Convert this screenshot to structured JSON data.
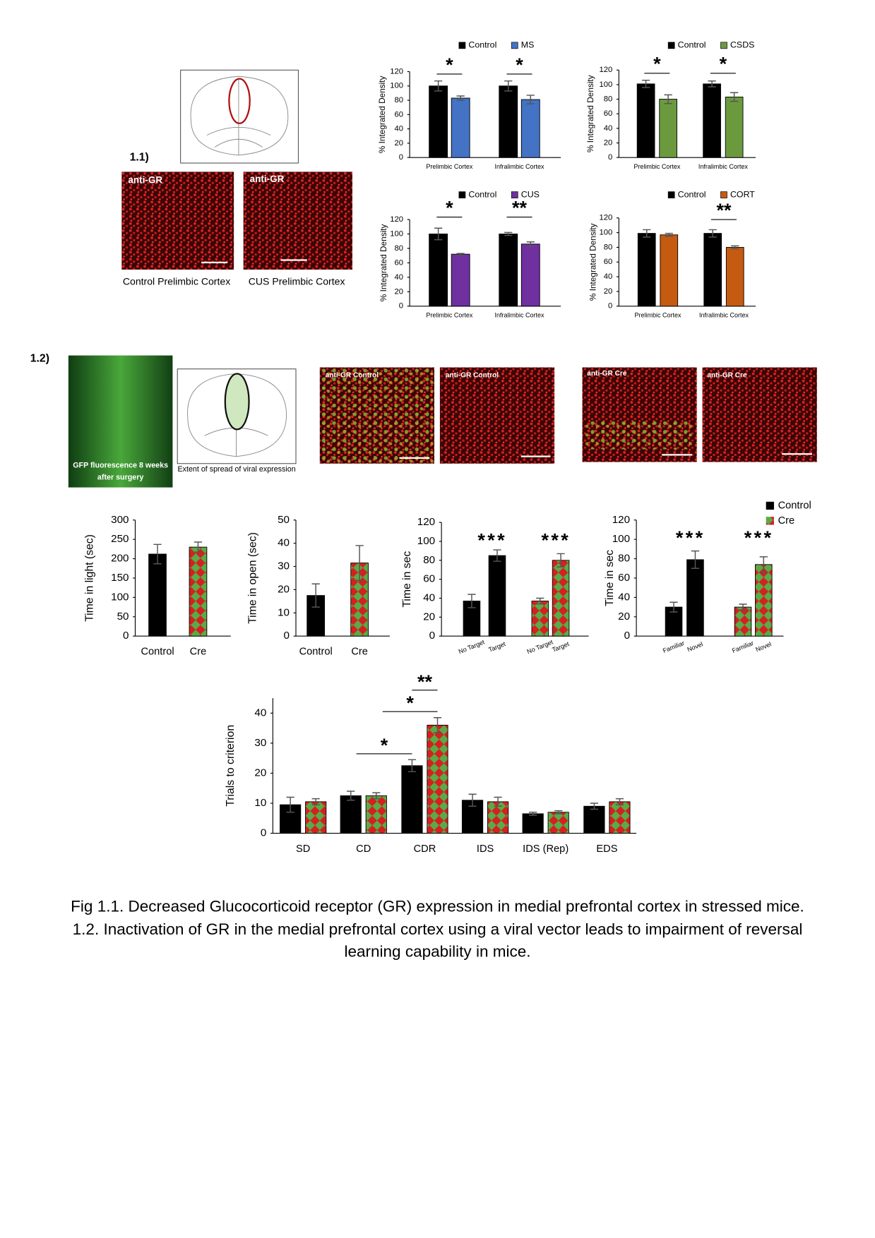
{
  "panel_labels": [
    "1.1)",
    "1.2)"
  ],
  "images": {
    "gr_left_label": "anti-GR",
    "gr_right_label": "anti-GR",
    "gr_left_caption": "Control Prelimbic Cortex",
    "gr_right_caption": "CUS Prelimbic Cortex",
    "gfp_caption": "GFP fluorescence 8 weeks after surgery",
    "spread_caption": "Extent of spread of viral expression",
    "ctrl_merge_label": "anti-GR Control",
    "ctrl_red_label": "anti-GR Control",
    "cre_merge_label": "anti-GR Cre",
    "cre_red_label": "anti-GR Cre"
  },
  "caption": [
    "Fig 1.1. Decreased Glucocorticoid receptor (GR) expression in medial prefrontal cortex in stressed mice.",
    "1.2. Inactivation of GR in the medial prefrontal cortex using a viral vector leads to impairment of reversal",
    "learning capability in mice."
  ],
  "chart_data": [
    {
      "type": "bar",
      "y_label": "% Integrated  Density",
      "categories": [
        "Prelimbic Cortex",
        "Infralimbic Cortex"
      ],
      "series": [
        {
          "name": "Control",
          "color": "#000000",
          "values": [
            100,
            100
          ],
          "errors": [
            7,
            7
          ]
        },
        {
          "name": "MS",
          "color": "#4472c4",
          "values": [
            83,
            81
          ],
          "errors": [
            3,
            6
          ]
        }
      ],
      "significance": [
        "*",
        "*"
      ],
      "ylim": [
        0,
        120
      ],
      "yticks": [
        0,
        20,
        40,
        60,
        80,
        100,
        120
      ]
    },
    {
      "type": "bar",
      "y_label": "% Integrated  Density",
      "categories": [
        "Prelimbic Cortex",
        "Infralimbic Cortex"
      ],
      "series": [
        {
          "name": "Control",
          "color": "#000000",
          "values": [
            101,
            101
          ],
          "errors": [
            5,
            4
          ]
        },
        {
          "name": "CSDS",
          "color": "#6b9a3e",
          "values": [
            80,
            83
          ],
          "errors": [
            6,
            6
          ]
        }
      ],
      "significance": [
        "*",
        "*"
      ],
      "ylim": [
        0,
        120
      ],
      "yticks": [
        0,
        20,
        40,
        60,
        80,
        100,
        120
      ]
    },
    {
      "type": "bar",
      "y_label": "% Integrated  Density",
      "categories": [
        "Prelimbic Cortex",
        "Infralimbic Cortex"
      ],
      "series": [
        {
          "name": "Control",
          "color": "#000000",
          "values": [
            100,
            100
          ],
          "errors": [
            8,
            2
          ]
        },
        {
          "name": "CUS",
          "color": "#7030a0",
          "values": [
            72,
            86
          ],
          "errors": [
            1,
            3
          ]
        }
      ],
      "significance": [
        "*",
        "**"
      ],
      "ylim": [
        0,
        120
      ],
      "yticks": [
        0,
        20,
        40,
        60,
        80,
        100,
        120
      ]
    },
    {
      "type": "bar",
      "y_label": "% Integrated  Density",
      "categories": [
        "Prelimbic Cortex",
        "Infralimbic Cortex"
      ],
      "series": [
        {
          "name": "Control",
          "color": "#000000",
          "values": [
            99,
            99
          ],
          "errors": [
            5,
            5
          ]
        },
        {
          "name": "CORT",
          "color": "#c55a11",
          "values": [
            97,
            80
          ],
          "errors": [
            2,
            2
          ]
        }
      ],
      "significance": [
        null,
        "**"
      ],
      "ylim": [
        0,
        120
      ],
      "yticks": [
        0,
        20,
        40,
        60,
        80,
        100,
        120
      ]
    },
    {
      "type": "bar",
      "y_label": "Time in light (sec)",
      "categories": [
        "Control",
        "Cre"
      ],
      "values": [
        212,
        230
      ],
      "errors": [
        25,
        13
      ],
      "colors": [
        "#000000",
        "#d42020"
      ],
      "pattern": [
        false,
        true
      ],
      "pattern_color": "#5aab48",
      "ylim": [
        0,
        300
      ],
      "yticks": [
        0,
        50,
        100,
        150,
        200,
        250,
        300
      ]
    },
    {
      "type": "bar",
      "y_label": "Time in open (sec)",
      "categories": [
        "Control",
        "Cre"
      ],
      "values": [
        17.5,
        31.5
      ],
      "errors": [
        5,
        7.5
      ],
      "colors": [
        "#000000",
        "#d42020"
      ],
      "pattern": [
        false,
        true
      ],
      "pattern_color": "#5aab48",
      "ylim": [
        0,
        50
      ],
      "yticks": [
        0,
        10,
        20,
        30,
        40,
        50
      ]
    },
    {
      "type": "bar",
      "y_label": "Time in sec",
      "categories": [
        "No Target",
        "Target",
        "No Target",
        "Target"
      ],
      "values": [
        37,
        85,
        37,
        80
      ],
      "errors": [
        7,
        6,
        3,
        7
      ],
      "colors": [
        "#000000",
        "#000000",
        "#d42020",
        "#d42020"
      ],
      "pattern": [
        false,
        false,
        true,
        true
      ],
      "pattern_color": "#5aab48",
      "annotations": [
        null,
        "***",
        null,
        "***"
      ],
      "ylim": [
        0,
        120
      ],
      "yticks": [
        0,
        20,
        40,
        60,
        80,
        100,
        120
      ]
    },
    {
      "type": "bar",
      "y_label": "Time in sec",
      "categories": [
        "Familiar",
        "Novel",
        "Familiar",
        "Novel"
      ],
      "values": [
        30,
        79,
        30,
        74
      ],
      "errors": [
        5,
        9,
        3,
        8
      ],
      "colors": [
        "#000000",
        "#000000",
        "#d42020",
        "#d42020"
      ],
      "pattern": [
        false,
        false,
        true,
        true
      ],
      "pattern_color": "#5aab48",
      "annotations": [
        null,
        "***",
        null,
        "***"
      ],
      "legend": [
        {
          "name": "Control",
          "color": "#000000",
          "pattern": false
        },
        {
          "name": "Cre",
          "color": "#d42020",
          "pattern": true
        }
      ],
      "ylim": [
        0,
        120
      ],
      "yticks": [
        0,
        20,
        40,
        60,
        80,
        100,
        120
      ]
    },
    {
      "type": "bar",
      "y_label": "Trials to criterion",
      "categories": [
        "SD",
        "CD",
        "CDR",
        "IDS",
        "IDS (Rep)",
        "EDS"
      ],
      "series": [
        {
          "name": "Control",
          "color": "#000000",
          "values": [
            9.5,
            12.5,
            22.5,
            11,
            6.5,
            9
          ],
          "errors": [
            2.5,
            1.5,
            2,
            2,
            0.5,
            1
          ]
        },
        {
          "name": "Cre",
          "color": "#d42020",
          "pattern": true,
          "values": [
            10.5,
            12.5,
            36,
            10.5,
            7,
            10.5
          ],
          "errors": [
            1,
            1,
            2.5,
            1.5,
            0.5,
            1
          ]
        }
      ],
      "pattern_color": "#5aab48",
      "annotations": [
        "*",
        "*",
        "**"
      ],
      "ylim": [
        0,
        45
      ],
      "yticks": [
        0,
        10,
        20,
        30,
        40
      ]
    }
  ]
}
